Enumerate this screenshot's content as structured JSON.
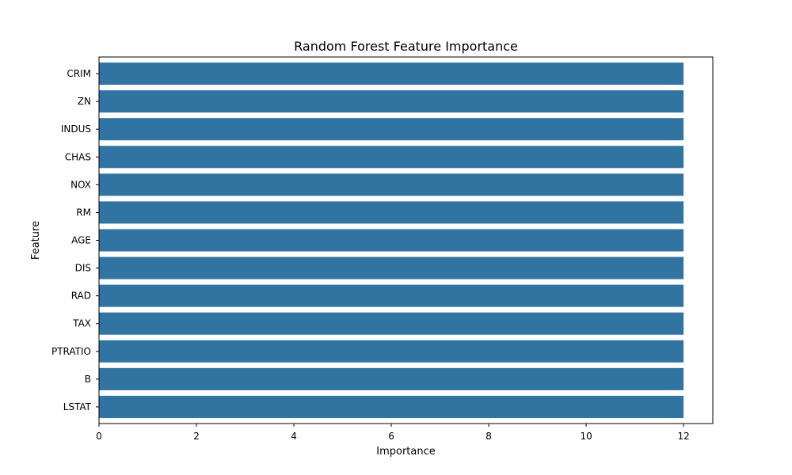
{
  "chart_data": {
    "type": "bar",
    "orientation": "horizontal",
    "title": "Random Forest Feature Importance",
    "xlabel": "Importance",
    "ylabel": "Feature",
    "categories": [
      "CRIM",
      "ZN",
      "INDUS",
      "CHAS",
      "NOX",
      "RM",
      "AGE",
      "DIS",
      "RAD",
      "TAX",
      "PTRATIO",
      "B",
      "LSTAT"
    ],
    "values": [
      12,
      12,
      12,
      12,
      12,
      12,
      12,
      12,
      12,
      12,
      12,
      12,
      12
    ],
    "xlim": [
      0,
      12.6
    ],
    "xticks": [
      0,
      2,
      4,
      6,
      8,
      10,
      12
    ],
    "grid": false,
    "bar_color": "#3274a1"
  }
}
